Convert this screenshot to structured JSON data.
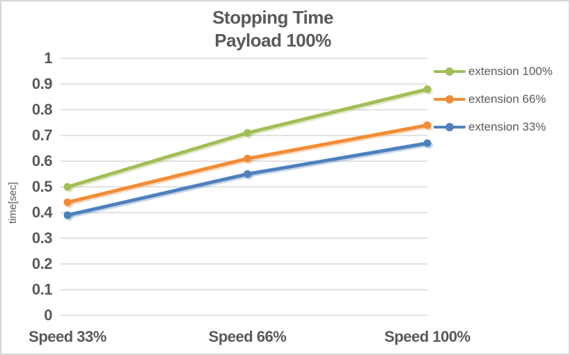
{
  "chart_data": {
    "type": "line",
    "title": "Stopping Time",
    "subtitle": "Payload 100%",
    "ylabel": "time[sec]",
    "xlabel": "",
    "categories": [
      "Speed 33%",
      "Speed 66%",
      "Speed 100%"
    ],
    "series": [
      {
        "name": "extension 100%",
        "color": "#A2BE57",
        "values": [
          0.5,
          0.71,
          0.88
        ]
      },
      {
        "name": "extension 66%",
        "color": "#F18C36",
        "values": [
          0.44,
          0.61,
          0.74
        ]
      },
      {
        "name": "extension 33%",
        "color": "#4E80BC",
        "values": [
          0.39,
          0.55,
          0.67
        ]
      }
    ],
    "ylim": [
      0,
      1
    ],
    "ytick_step": 0.1,
    "ytick_labels_top_to_bottom": [
      "1",
      "0.9",
      "0.8",
      "0.7",
      "0.6",
      "0.5",
      "0.4",
      "0.3",
      "0.2",
      "0.1",
      "0"
    ],
    "grid": true,
    "legend_position": "right",
    "marker": "circle"
  },
  "colors": {
    "background": "#FFFFFF",
    "border": "#D5D5D5",
    "gridline": "#D9D9D9",
    "text": "#595959"
  }
}
